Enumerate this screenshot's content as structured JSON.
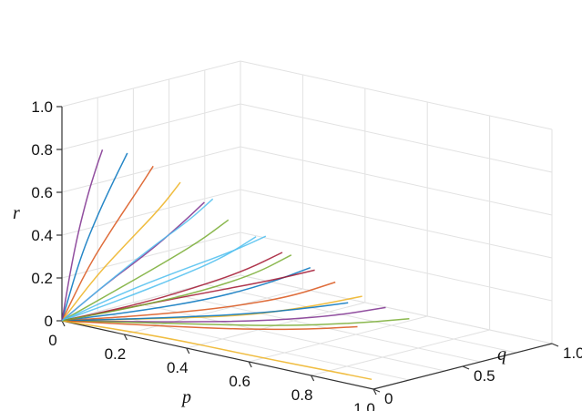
{
  "chart_data": {
    "type": "line",
    "subtype": "3d-trajectories",
    "title": "",
    "xlabel": "p",
    "ylabel": "q",
    "zlabel": "r",
    "xlim": [
      0,
      1.0
    ],
    "ylim": [
      0,
      1.0
    ],
    "zlim": [
      0,
      1.0
    ],
    "x_ticks": [
      "0",
      "0.2",
      "0.4",
      "0.6",
      "0.8",
      "1.0"
    ],
    "y_ticks": [
      "0",
      "0.5",
      "1.0"
    ],
    "z_ticks": [
      "0",
      "0.2",
      "0.4",
      "0.6",
      "0.8",
      "1.0"
    ],
    "grid": true,
    "legend": "none",
    "colors": [
      "#0072BD",
      "#D95319",
      "#EDB120",
      "#7E2F8E",
      "#77AC30",
      "#4DBEEE",
      "#A2142F"
    ],
    "series": [
      {
        "points": [
          [
            0,
            0,
            0
          ],
          [
            0.06,
            0,
            0.32
          ],
          [
            0.12,
            0,
            0.55
          ],
          [
            0.17,
            0,
            0.72
          ],
          [
            0.21,
            0,
            0.85
          ]
        ]
      },
      {
        "points": [
          [
            0,
            0,
            0
          ],
          [
            0.08,
            0.01,
            0.28
          ],
          [
            0.16,
            0.02,
            0.5
          ],
          [
            0.22,
            0.03,
            0.66
          ],
          [
            0.27,
            0.04,
            0.8
          ]
        ]
      },
      {
        "points": [
          [
            0,
            0,
            0
          ],
          [
            0.1,
            0.02,
            0.24
          ],
          [
            0.2,
            0.04,
            0.44
          ],
          [
            0.28,
            0.06,
            0.6
          ],
          [
            0.34,
            0.07,
            0.74
          ]
        ]
      },
      {
        "points": [
          [
            0,
            0,
            0
          ],
          [
            0.12,
            0.03,
            0.2
          ],
          [
            0.24,
            0.06,
            0.38
          ],
          [
            0.33,
            0.08,
            0.53
          ],
          [
            0.4,
            0.1,
            0.66
          ]
        ]
      },
      {
        "points": [
          [
            0,
            0,
            0
          ],
          [
            0.14,
            0.04,
            0.17
          ],
          [
            0.27,
            0.08,
            0.33
          ],
          [
            0.38,
            0.11,
            0.47
          ],
          [
            0.46,
            0.13,
            0.59
          ]
        ]
      },
      {
        "points": [
          [
            0,
            0,
            0
          ],
          [
            0.16,
            0.06,
            0.14
          ],
          [
            0.31,
            0.11,
            0.28
          ],
          [
            0.43,
            0.15,
            0.4
          ],
          [
            0.52,
            0.18,
            0.52
          ]
        ]
      },
      {
        "points": [
          [
            0,
            0,
            0
          ],
          [
            0.18,
            0.08,
            0.11
          ],
          [
            0.34,
            0.15,
            0.23
          ],
          [
            0.47,
            0.2,
            0.34
          ],
          [
            0.57,
            0.24,
            0.45
          ]
        ]
      },
      {
        "points": [
          [
            0,
            0,
            0
          ],
          [
            0.2,
            0.1,
            0.09
          ],
          [
            0.37,
            0.19,
            0.18
          ],
          [
            0.51,
            0.26,
            0.28
          ],
          [
            0.62,
            0.31,
            0.38
          ]
        ]
      },
      {
        "points": [
          [
            0,
            0,
            0
          ],
          [
            0.22,
            0.13,
            0.07
          ],
          [
            0.4,
            0.24,
            0.14
          ],
          [
            0.55,
            0.32,
            0.22
          ],
          [
            0.66,
            0.38,
            0.31
          ]
        ]
      },
      {
        "points": [
          [
            0,
            0,
            0
          ],
          [
            0.23,
            0.16,
            0.05
          ],
          [
            0.43,
            0.29,
            0.1
          ],
          [
            0.58,
            0.39,
            0.17
          ],
          [
            0.7,
            0.46,
            0.24
          ]
        ]
      },
      {
        "points": [
          [
            0,
            0,
            0
          ],
          [
            0.24,
            0.19,
            0.03
          ],
          [
            0.45,
            0.34,
            0.07
          ],
          [
            0.61,
            0.46,
            0.12
          ],
          [
            0.73,
            0.54,
            0.18
          ]
        ]
      },
      {
        "points": [
          [
            0,
            0,
            0
          ],
          [
            0.25,
            0.22,
            0.02
          ],
          [
            0.47,
            0.4,
            0.04
          ],
          [
            0.64,
            0.53,
            0.08
          ],
          [
            0.76,
            0.62,
            0.12
          ]
        ]
      },
      {
        "points": [
          [
            0,
            0,
            0
          ],
          [
            0.2,
            0.02,
            0.2
          ],
          [
            0.38,
            0.04,
            0.36
          ],
          [
            0.52,
            0.05,
            0.48
          ],
          [
            0.62,
            0.06,
            0.58
          ]
        ]
      },
      {
        "points": [
          [
            0,
            0,
            0
          ],
          [
            0.25,
            0.03,
            0.15
          ],
          [
            0.47,
            0.06,
            0.28
          ],
          [
            0.64,
            0.08,
            0.38
          ],
          [
            0.76,
            0.09,
            0.46
          ]
        ]
      },
      {
        "points": [
          [
            0,
            0,
            0
          ],
          [
            0.3,
            0.04,
            0.1
          ],
          [
            0.55,
            0.08,
            0.19
          ],
          [
            0.73,
            0.1,
            0.27
          ],
          [
            0.85,
            0.12,
            0.33
          ]
        ]
      },
      {
        "points": [
          [
            0,
            0,
            0
          ],
          [
            0.28,
            0.07,
            0.05
          ],
          [
            0.52,
            0.12,
            0.1
          ],
          [
            0.7,
            0.16,
            0.15
          ],
          [
            0.84,
            0.19,
            0.2
          ]
        ]
      },
      {
        "points": [
          [
            0,
            0,
            0
          ],
          [
            0.3,
            0.02,
            0.02
          ],
          [
            0.6,
            0.03,
            0.02
          ],
          [
            0.82,
            0.05,
            0.02
          ],
          [
            0.96,
            0.06,
            0.02
          ]
        ]
      },
      {
        "points": [
          [
            0,
            0,
            0
          ],
          [
            0.04,
            0,
            0.35
          ],
          [
            0.08,
            0,
            0.6
          ],
          [
            0.11,
            0,
            0.75
          ],
          [
            0.13,
            0,
            0.84
          ]
        ]
      },
      {
        "points": [
          [
            0,
            0,
            0
          ],
          [
            0.18,
            0.12,
            0.1
          ],
          [
            0.33,
            0.22,
            0.2
          ],
          [
            0.45,
            0.3,
            0.3
          ],
          [
            0.53,
            0.36,
            0.4
          ]
        ]
      },
      {
        "points": [
          [
            0,
            0,
            0
          ],
          [
            0.15,
            0.02,
            0.24
          ],
          [
            0.28,
            0.04,
            0.44
          ],
          [
            0.38,
            0.05,
            0.58
          ],
          [
            0.45,
            0.06,
            0.7
          ]
        ]
      }
    ]
  }
}
